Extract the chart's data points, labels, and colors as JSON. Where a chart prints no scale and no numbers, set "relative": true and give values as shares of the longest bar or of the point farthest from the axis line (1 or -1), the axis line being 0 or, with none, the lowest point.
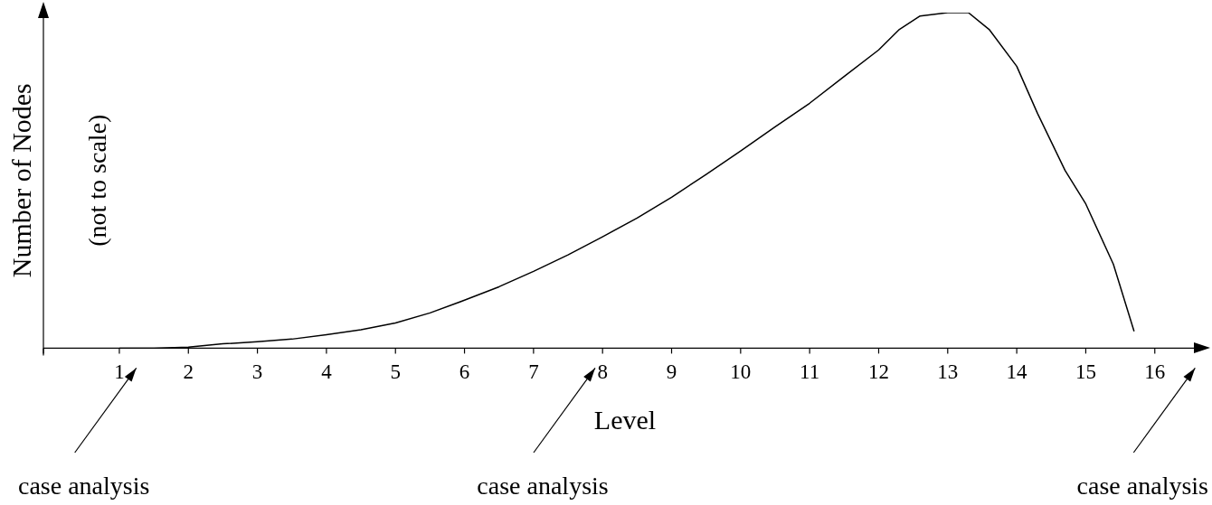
{
  "chart_data": {
    "type": "line",
    "xlabel": "Level",
    "ylabel": "Number of Nodes",
    "relative": true,
    "tick_labels": "x",
    "legend": false,
    "grid": false,
    "xlim": [
      -0.1,
      16.75
    ],
    "xticks": [
      1,
      2,
      3,
      4,
      5,
      6,
      7,
      8,
      9,
      10,
      11,
      12,
      13,
      14,
      15,
      16
    ],
    "annotations": [
      "(not to scale)",
      "case analysis",
      "case analysis",
      "case analysis"
    ],
    "series": [
      {
        "color": "#000000",
        "x": [
          1,
          1.5,
          2,
          2.5,
          3,
          3.5,
          4,
          4.5,
          5,
          5.5,
          6,
          6.5,
          7,
          7.5,
          8,
          8.5,
          9,
          9.5,
          10,
          10.5,
          11,
          11.5,
          12,
          12.3,
          12.6,
          13,
          13.3,
          13.6,
          14,
          14.3,
          14.7,
          15,
          15.4,
          15.7
        ],
        "values": [
          0,
          0,
          0.003,
          0.013,
          0.019,
          0.027,
          0.04,
          0.055,
          0.075,
          0.105,
          0.143,
          0.183,
          0.229,
          0.278,
          0.332,
          0.388,
          0.45,
          0.518,
          0.588,
          0.66,
          0.73,
          0.81,
          0.889,
          0.95,
          0.99,
          1,
          1,
          0.95,
          0.84,
          0.7,
          0.53,
          0.43,
          0.25,
          0.05
        ]
      }
    ]
  }
}
